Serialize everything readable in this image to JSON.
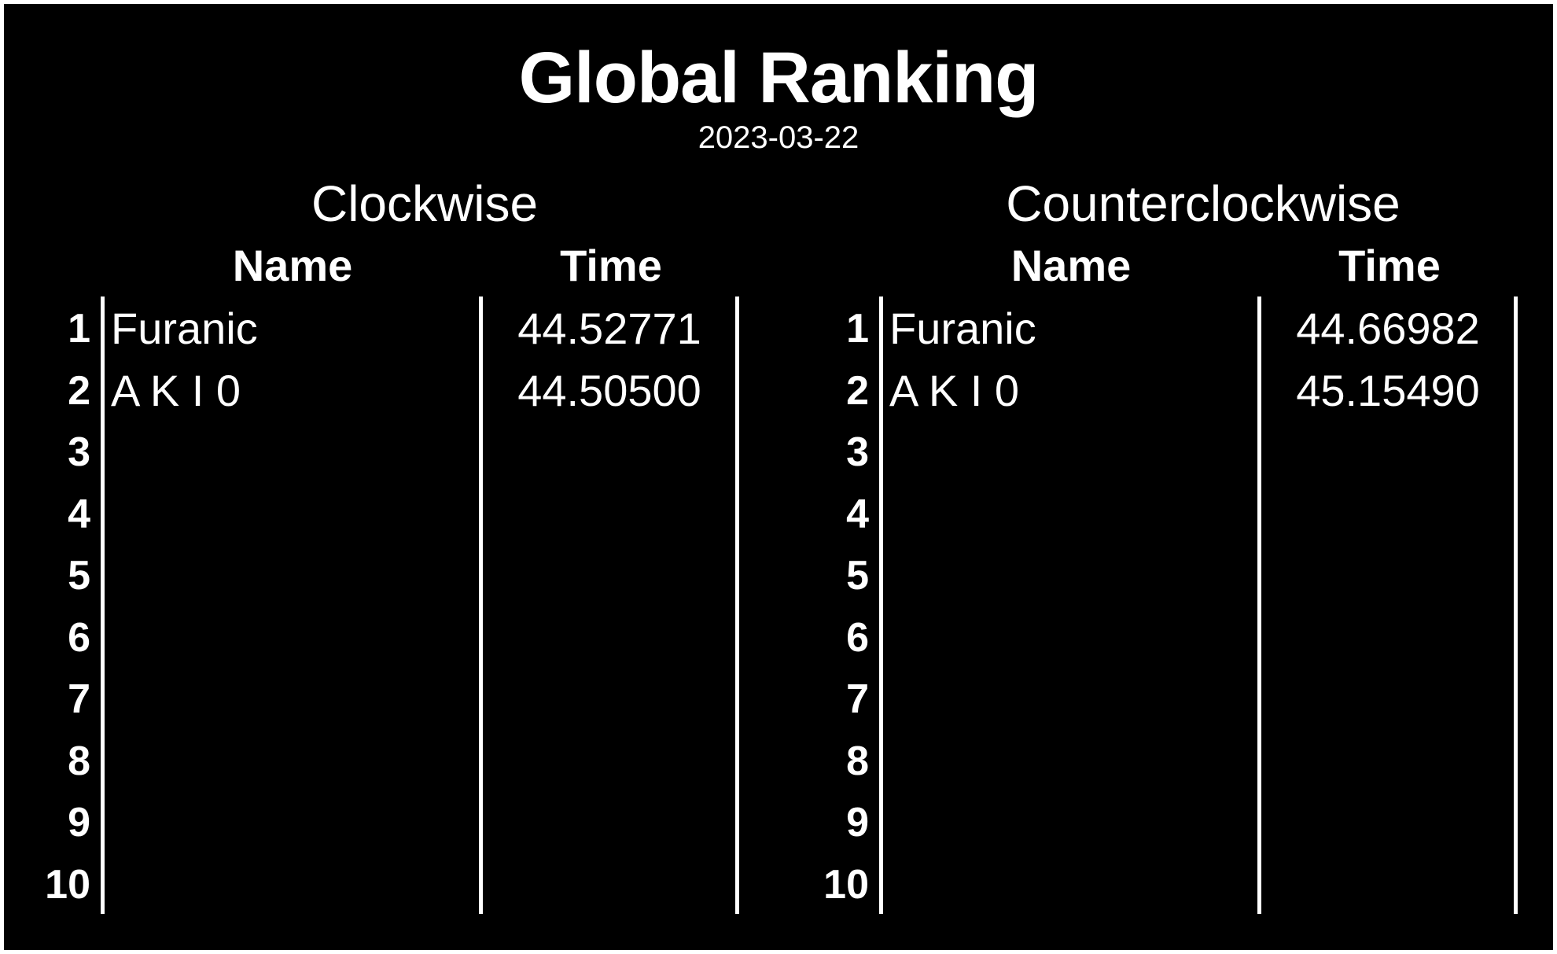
{
  "title": "Global Ranking",
  "date": "2023-03-22",
  "columns": {
    "name": "Name",
    "time": "Time"
  },
  "tables": [
    {
      "direction": "Clockwise",
      "rows": [
        {
          "rank": "1",
          "name": "Furanic",
          "time": "44.52771"
        },
        {
          "rank": "2",
          "name": "A K I 0",
          "time": "44.50500"
        },
        {
          "rank": "3",
          "name": "",
          "time": ""
        },
        {
          "rank": "4",
          "name": "",
          "time": ""
        },
        {
          "rank": "5",
          "name": "",
          "time": ""
        },
        {
          "rank": "6",
          "name": "",
          "time": ""
        },
        {
          "rank": "7",
          "name": "",
          "time": ""
        },
        {
          "rank": "8",
          "name": "",
          "time": ""
        },
        {
          "rank": "9",
          "name": "",
          "time": ""
        },
        {
          "rank": "10",
          "name": "",
          "time": ""
        }
      ]
    },
    {
      "direction": "Counterclockwise",
      "rows": [
        {
          "rank": "1",
          "name": "Furanic",
          "time": "44.66982"
        },
        {
          "rank": "2",
          "name": "A K I 0",
          "time": "45.15490"
        },
        {
          "rank": "3",
          "name": "",
          "time": ""
        },
        {
          "rank": "4",
          "name": "",
          "time": ""
        },
        {
          "rank": "5",
          "name": "",
          "time": ""
        },
        {
          "rank": "6",
          "name": "",
          "time": ""
        },
        {
          "rank": "7",
          "name": "",
          "time": ""
        },
        {
          "rank": "8",
          "name": "",
          "time": ""
        },
        {
          "rank": "9",
          "name": "",
          "time": ""
        },
        {
          "rank": "10",
          "name": "",
          "time": ""
        }
      ]
    }
  ],
  "colors": {
    "background": "#000000",
    "text": "#ffffff",
    "frame": "#ffffff"
  }
}
